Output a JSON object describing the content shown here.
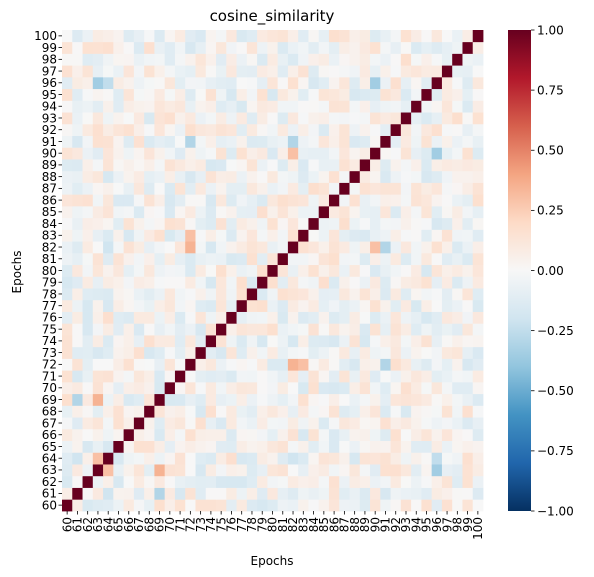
{
  "chart_data": {
    "type": "heatmap",
    "title": "cosine_similarity",
    "xlabel": "Epochs",
    "ylabel": "Epochs",
    "x_categories": [
      60,
      61,
      62,
      63,
      64,
      65,
      66,
      67,
      68,
      69,
      70,
      71,
      72,
      73,
      74,
      75,
      76,
      77,
      78,
      79,
      80,
      81,
      82,
      83,
      84,
      85,
      86,
      87,
      88,
      89,
      90,
      91,
      92,
      93,
      94,
      95,
      96,
      97,
      98,
      99,
      100
    ],
    "y_categories": [
      60,
      61,
      62,
      63,
      64,
      65,
      66,
      67,
      68,
      69,
      70,
      71,
      72,
      73,
      74,
      75,
      76,
      77,
      78,
      79,
      80,
      81,
      82,
      83,
      84,
      85,
      86,
      87,
      88,
      89,
      90,
      91,
      92,
      93,
      94,
      95,
      96,
      97,
      98,
      99,
      100
    ],
    "y_order": "bottom-to-top",
    "diagonal_value": 1.0,
    "off_diagonal_range": [
      -0.4,
      0.35
    ],
    "highlighted_pairs": [
      {
        "a": 63,
        "b": 96,
        "value": -0.35
      },
      {
        "a": 63,
        "b": 64,
        "value": 0.3
      },
      {
        "a": 72,
        "b": 82,
        "value": 0.35
      },
      {
        "a": 72,
        "b": 91,
        "value": -0.3
      },
      {
        "a": 82,
        "b": 90,
        "value": 0.3
      },
      {
        "a": 90,
        "b": 96,
        "value": -0.35
      },
      {
        "a": 61,
        "b": 69,
        "value": -0.3
      },
      {
        "a": 63,
        "b": 69,
        "value": 0.35
      },
      {
        "a": 61,
        "b": 64,
        "value": -0.2
      },
      {
        "a": 64,
        "b": 82,
        "value": -0.2
      },
      {
        "a": 82,
        "b": 91,
        "value": -0.3
      },
      {
        "a": 64,
        "b": 96,
        "value": -0.25
      },
      {
        "a": 72,
        "b": 83,
        "value": 0.3
      }
    ],
    "colorbar": {
      "colormap": "RdBu_r",
      "vmin": -1.0,
      "vmax": 1.0,
      "ticks": [
        "1.00",
        "0.75",
        "0.50",
        "0.25",
        "0.00",
        "−0.25",
        "−0.50",
        "−0.75",
        "−1.00"
      ]
    },
    "colors": {
      "low": "#053061",
      "mid": "#f7f7f7",
      "high": "#67001f"
    }
  }
}
